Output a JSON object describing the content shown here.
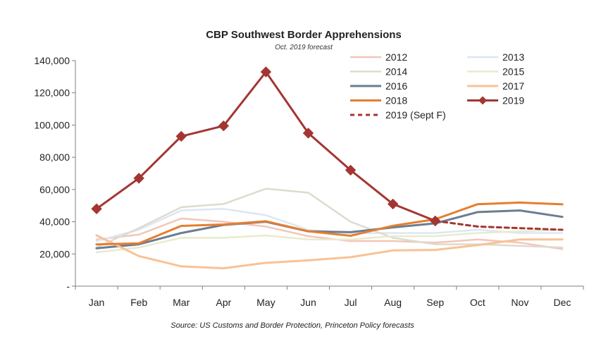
{
  "chart_data": {
    "type": "line",
    "title": "CBP Southwest Border Apprehensions",
    "subtitle": "Oct. 2019 forecast",
    "source": "Source: US Customs and Border Protection, Princeton Policy forecasts",
    "xlabel": "",
    "ylabel": "",
    "ylim": [
      0,
      140000
    ],
    "y_ticks": [
      0,
      20000,
      40000,
      60000,
      80000,
      100000,
      120000,
      140000
    ],
    "y_tick_labels": [
      "-",
      "20,000",
      "40,000",
      "60,000",
      "80,000",
      "100,000",
      "120,000",
      "140,000"
    ],
    "categories": [
      "Jan",
      "Feb",
      "Mar",
      "Apr",
      "May",
      "Jun",
      "Jul",
      "Aug",
      "Sep",
      "Oct",
      "Nov",
      "Dec"
    ],
    "legend_position": "top-right",
    "series": [
      {
        "name": "2012",
        "color": "#f2c6b8",
        "width": 2.5,
        "style": "solid",
        "marker": "none",
        "values": [
          29000,
          32000,
          42000,
          40000,
          37000,
          31000,
          28000,
          28000,
          27000,
          29000,
          27000,
          23000
        ]
      },
      {
        "name": "2013",
        "color": "#dde6f2",
        "width": 2.5,
        "style": "solid",
        "marker": "none",
        "values": [
          28000,
          35000,
          47000,
          48000,
          44000,
          35000,
          33000,
          33000,
          33000,
          35000,
          33000,
          33000
        ]
      },
      {
        "name": "2014",
        "color": "#dedbcd",
        "width": 2.5,
        "style": "solid",
        "marker": "none",
        "values": [
          24000,
          36000,
          49000,
          51000,
          60500,
          58000,
          40000,
          30000,
          26000,
          26000,
          25000,
          24000
        ]
      },
      {
        "name": "2015",
        "color": "#e8ebcc",
        "width": 2.5,
        "style": "solid",
        "marker": "none",
        "values": [
          21000,
          24000,
          30000,
          30000,
          31500,
          29000,
          29000,
          31000,
          31000,
          33000,
          34000,
          35000
        ]
      },
      {
        "name": "2016",
        "color": "#6a7d93",
        "width": 3,
        "style": "solid",
        "marker": "none",
        "values": [
          23500,
          26000,
          33000,
          38000,
          40000,
          34000,
          33500,
          36500,
          39000,
          46000,
          47000,
          43000
        ]
      },
      {
        "name": "2017",
        "color": "#f9c195",
        "width": 3,
        "style": "solid",
        "marker": "none",
        "values": [
          31500,
          18700,
          12300,
          11100,
          14500,
          16000,
          18000,
          22200,
          22500,
          25500,
          29000,
          29000
        ]
      },
      {
        "name": "2018",
        "color": "#e57e2f",
        "width": 3,
        "style": "solid",
        "marker": "none",
        "values": [
          25900,
          26600,
          37400,
          38300,
          40300,
          34100,
          31300,
          37500,
          41500,
          50900,
          51900,
          50800
        ]
      },
      {
        "name": "2019",
        "color": "#a33632",
        "width": 3,
        "style": "solid",
        "marker": "diamond",
        "values": [
          48000,
          67000,
          93000,
          99500,
          133000,
          95000,
          72000,
          51000,
          40500,
          null,
          null,
          null
        ]
      },
      {
        "name": "2019 (Sept F)",
        "color": "#a33632",
        "width": 3,
        "style": "dashed",
        "marker": "none",
        "values": [
          null,
          null,
          null,
          null,
          null,
          null,
          null,
          null,
          40500,
          37000,
          36000,
          35000
        ]
      }
    ]
  }
}
